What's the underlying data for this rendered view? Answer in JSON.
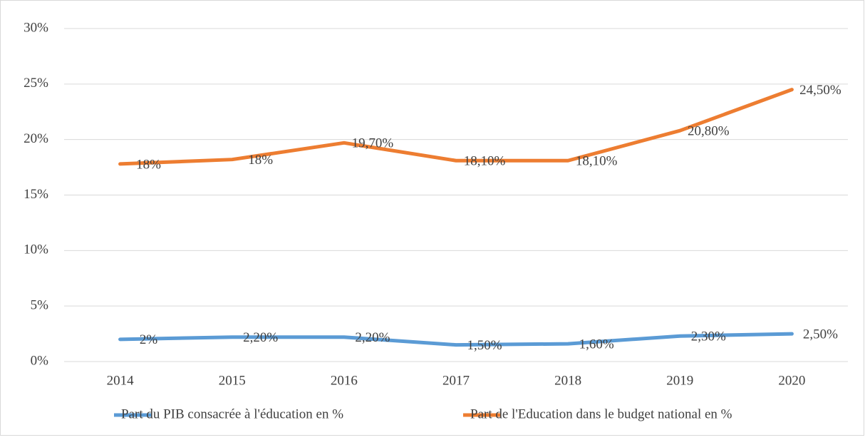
{
  "chart_data": {
    "type": "line",
    "categories": [
      "2014",
      "2015",
      "2016",
      "2017",
      "2018",
      "2019",
      "2020"
    ],
    "series": [
      {
        "name": "Part du PIB consacrée à l'éducation en %",
        "color": "#5b9bd5",
        "values": [
          2,
          2.2,
          2.2,
          1.5,
          1.6,
          2.3,
          2.5
        ],
        "value_labels": [
          "2%",
          "2,20%",
          "2,20%",
          "1,50%",
          "1,60%",
          "2,30%",
          "2,50%"
        ]
      },
      {
        "name": "Part de l'Education dans le budget national en %",
        "color": "#ed7d31",
        "values": [
          17.8,
          18.2,
          19.7,
          18.1,
          18.1,
          20.8,
          24.5
        ],
        "value_labels": [
          "18%",
          "18%",
          "19,70%",
          "18,10%",
          "18,10%",
          "20,80%",
          "24,50%"
        ]
      }
    ],
    "ylim": [
      0,
      30
    ],
    "yticks": [
      {
        "value": 0,
        "label": "0%"
      },
      {
        "value": 5,
        "label": "5%"
      },
      {
        "value": 10,
        "label": "10%"
      },
      {
        "value": 15,
        "label": "15%"
      },
      {
        "value": 20,
        "label": "20%"
      },
      {
        "value": 25,
        "label": "25%"
      },
      {
        "value": 30,
        "label": "30%"
      }
    ],
    "grid": true,
    "legend": "bottom"
  }
}
